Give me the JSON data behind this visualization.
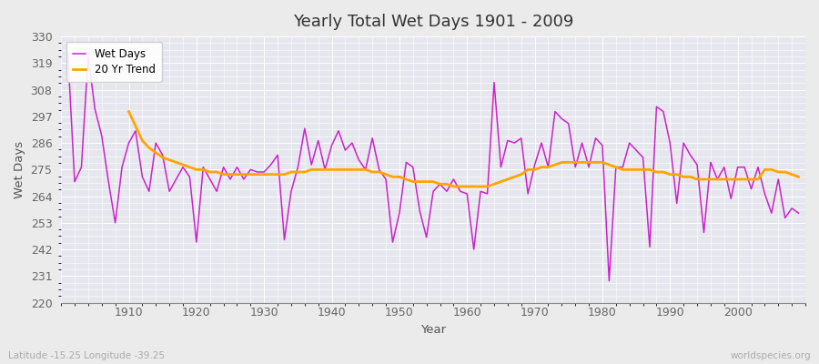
{
  "title": "Yearly Total Wet Days 1901 - 2009",
  "xlabel": "Year",
  "ylabel": "Wet Days",
  "subtitle": "Latitude -15.25 Longitude -39.25",
  "watermark": "worldspecies.org",
  "line_color": "#CC22CC",
  "trend_color": "#FFA500",
  "bg_color": "#E6E6EE",
  "fig_bg_color": "#EBEBEB",
  "grid_color": "#FFFFFF",
  "ylim": [
    220,
    330
  ],
  "yticks": [
    220,
    231,
    242,
    253,
    264,
    275,
    286,
    297,
    308,
    319,
    330
  ],
  "xticks": [
    1910,
    1920,
    1930,
    1940,
    1950,
    1960,
    1970,
    1980,
    1990,
    2000
  ],
  "years": [
    1901,
    1902,
    1903,
    1904,
    1905,
    1906,
    1907,
    1908,
    1909,
    1910,
    1911,
    1912,
    1913,
    1914,
    1915,
    1916,
    1917,
    1918,
    1919,
    1920,
    1921,
    1922,
    1923,
    1924,
    1925,
    1926,
    1927,
    1928,
    1929,
    1930,
    1931,
    1932,
    1933,
    1934,
    1935,
    1936,
    1937,
    1938,
    1939,
    1940,
    1941,
    1942,
    1943,
    1944,
    1945,
    1946,
    1947,
    1948,
    1949,
    1950,
    1951,
    1952,
    1953,
    1954,
    1955,
    1956,
    1957,
    1958,
    1959,
    1960,
    1961,
    1962,
    1963,
    1964,
    1965,
    1966,
    1967,
    1968,
    1969,
    1970,
    1971,
    1972,
    1973,
    1974,
    1975,
    1976,
    1977,
    1978,
    1979,
    1980,
    1981,
    1982,
    1983,
    1984,
    1985,
    1986,
    1987,
    1988,
    1989,
    1990,
    1991,
    1992,
    1993,
    1994,
    1995,
    1996,
    1997,
    1998,
    1999,
    2000,
    2001,
    2002,
    2003,
    2004,
    2005,
    2006,
    2007,
    2008,
    2009
  ],
  "wet_days": [
    323,
    270,
    276,
    322,
    300,
    289,
    270,
    253,
    276,
    286,
    291,
    272,
    266,
    286,
    281,
    266,
    271,
    276,
    272,
    245,
    276,
    271,
    266,
    276,
    271,
    276,
    271,
    275,
    274,
    274,
    277,
    281,
    246,
    266,
    276,
    292,
    277,
    287,
    275,
    285,
    291,
    283,
    286,
    279,
    275,
    288,
    275,
    271,
    245,
    257,
    278,
    276,
    258,
    247,
    266,
    269,
    266,
    271,
    266,
    265,
    242,
    266,
    265,
    311,
    276,
    287,
    286,
    288,
    265,
    277,
    286,
    276,
    299,
    296,
    294,
    276,
    286,
    276,
    288,
    285,
    229,
    276,
    276,
    286,
    283,
    280,
    243,
    301,
    299,
    286,
    261,
    286,
    281,
    277,
    249,
    278,
    271,
    276,
    263,
    276,
    276,
    267,
    276,
    265,
    257,
    271,
    255,
    259,
    257
  ],
  "trend_years": [
    1910,
    1911,
    1912,
    1913,
    1914,
    1915,
    1916,
    1917,
    1918,
    1919,
    1920,
    1921,
    1922,
    1923,
    1924,
    1925,
    1926,
    1927,
    1928,
    1929,
    1930,
    1931,
    1932,
    1933,
    1934,
    1935,
    1936,
    1937,
    1938,
    1939,
    1940,
    1941,
    1942,
    1943,
    1944,
    1945,
    1946,
    1947,
    1948,
    1949,
    1950,
    1951,
    1952,
    1953,
    1954,
    1955,
    1956,
    1957,
    1958,
    1959,
    1960,
    1961,
    1962,
    1963,
    1964,
    1965,
    1966,
    1967,
    1968,
    1969,
    1970,
    1971,
    1972,
    1973,
    1974,
    1975,
    1976,
    1977,
    1978,
    1979,
    1980,
    1981,
    1982,
    1983,
    1984,
    1985,
    1986,
    1987,
    1988,
    1989,
    1990,
    1991,
    1992,
    1993,
    1994,
    1995,
    1996,
    1997,
    1998,
    1999,
    2000,
    2001,
    2002,
    2003,
    2004,
    2005,
    2006,
    2007,
    2008,
    2009
  ],
  "trend_values": [
    299,
    293,
    287,
    284,
    282,
    280,
    279,
    278,
    277,
    276,
    275,
    275,
    274,
    274,
    273,
    273,
    273,
    273,
    273,
    273,
    273,
    273,
    273,
    273,
    274,
    274,
    274,
    275,
    275,
    275,
    275,
    275,
    275,
    275,
    275,
    275,
    274,
    274,
    273,
    272,
    272,
    271,
    270,
    270,
    270,
    270,
    269,
    269,
    268,
    268,
    268,
    268,
    268,
    268,
    269,
    270,
    271,
    272,
    273,
    275,
    275,
    276,
    276,
    277,
    278,
    278,
    278,
    278,
    278,
    278,
    278,
    277,
    276,
    275,
    275,
    275,
    275,
    275,
    274,
    274,
    273,
    273,
    272,
    272,
    271,
    271,
    271,
    271,
    271,
    271,
    271,
    271,
    271,
    271,
    275,
    275,
    274,
    274,
    273,
    272
  ]
}
